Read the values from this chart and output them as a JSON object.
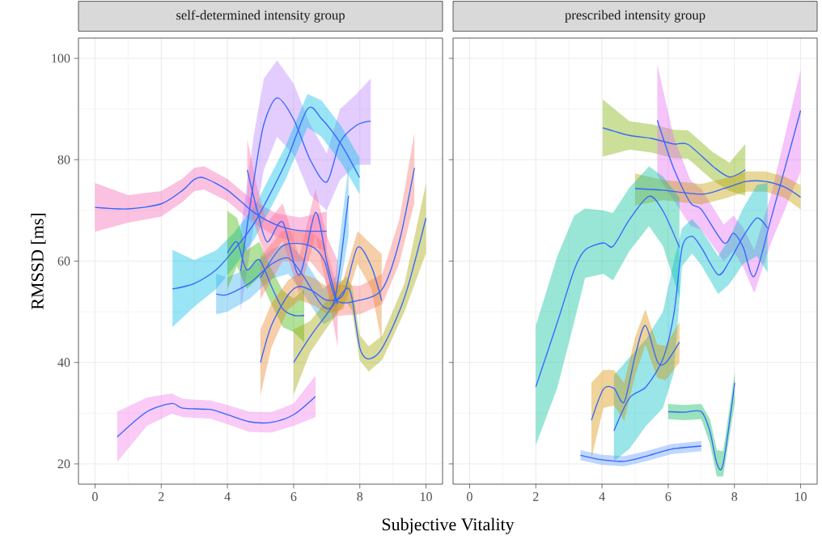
{
  "chart_data": [
    {
      "type": "line",
      "title": "self-determined intensity group",
      "xlabel": "Subjective Vitality",
      "ylabel": "RMSSD [ms]",
      "xlim": [
        -0.5,
        10.5
      ],
      "ylim": [
        16,
        104
      ],
      "xticks": [
        0,
        2,
        4,
        6,
        8,
        10
      ],
      "yticks": [
        20,
        40,
        60,
        80,
        100
      ],
      "grid": true,
      "series": [
        {
          "color": "#3366ff",
          "x": [
            0,
            1,
            2,
            2.65,
            3,
            3.3,
            4,
            4.8,
            5.5,
            6.2,
            7
          ],
          "values": [
            70.6,
            70.3,
            71.3,
            74,
            76.1,
            76.4,
            74,
            69.6,
            67.1,
            66,
            65.9
          ],
          "lower": [
            65.8,
            67.6,
            68.8,
            71.7,
            73.8,
            74.1,
            71.8,
            67.4,
            64.8,
            63.4,
            62
          ],
          "upper": [
            75.4,
            73,
            73.8,
            76.3,
            78.4,
            78.7,
            76.2,
            71.8,
            69.4,
            68.6,
            69.8
          ]
        },
        {
          "color": "#3366ff",
          "x": [
            0.67,
            1.57,
            2.32,
            2.65,
            3.5,
            4,
            4.66,
            5.33,
            6,
            6.66
          ],
          "values": [
            25.3,
            30.3,
            31.9,
            31,
            30.7,
            29.7,
            28.3,
            28.2,
            29.7,
            33.3
          ],
          "lower": [
            20.4,
            27.5,
            29.9,
            29.2,
            28.9,
            27.8,
            26.3,
            26.2,
            27.5,
            29.2
          ],
          "upper": [
            30.3,
            33.1,
            33.9,
            32.8,
            32.5,
            31.6,
            30.3,
            30.2,
            31.9,
            37.4
          ]
        },
        {
          "color": "#3366ff",
          "x": [
            4.4,
            4.8,
            5.1,
            5.5,
            6,
            6.5,
            7,
            7.4,
            7.9,
            8.33
          ],
          "values": [
            58,
            76,
            87,
            92.2,
            88,
            80,
            75.6,
            83.4,
            86.8,
            87.6
          ],
          "lower": [
            50,
            67,
            78,
            84.5,
            81,
            73,
            70,
            76,
            79,
            79
          ],
          "upper": [
            66,
            85,
            96,
            99.6,
            95,
            87,
            81.2,
            90,
            93,
            96
          ]
        },
        {
          "color": "#3366ff",
          "x": [
            2.34,
            3,
            3.66,
            4.16,
            4.83,
            5.75,
            6.42,
            6.84,
            7.43,
            7.99
          ],
          "values": [
            54.5,
            55.6,
            58.3,
            61.9,
            67.7,
            79.3,
            90,
            88.1,
            83.1,
            76.5
          ],
          "lower": [
            47,
            51,
            54.5,
            58.5,
            64.5,
            76,
            86.4,
            84.5,
            79.5,
            73.2
          ],
          "upper": [
            62.2,
            60.2,
            62.1,
            65.3,
            70.9,
            82.6,
            93,
            91.7,
            86.7,
            80.4
          ]
        },
        {
          "color": "#3366ff",
          "x": [
            3.66,
            4,
            4.66,
            5.33,
            5.84,
            6.3,
            6.9,
            7.26,
            7.66
          ],
          "values": [
            53.5,
            53.4,
            55.6,
            59.4,
            60.6,
            57,
            51,
            53,
            72.9
          ],
          "lower": [
            49.5,
            50,
            52.5,
            56.5,
            57.5,
            53.5,
            47.5,
            49,
            65
          ],
          "upper": [
            57.5,
            56.8,
            58.7,
            62.3,
            63.7,
            60.5,
            54.5,
            57,
            79
          ]
        },
        {
          "color": "#3366ff",
          "x": [
            4,
            4.29,
            4.58,
            4.96,
            5.33,
            5.67,
            6,
            6.32
          ],
          "values": [
            61.6,
            63.8,
            58.3,
            60.3,
            55,
            50.6,
            49.3,
            49.3
          ],
          "lower": [
            54.5,
            59,
            54.5,
            56.8,
            51.5,
            47,
            46,
            44
          ],
          "upper": [
            69.9,
            68.5,
            62.1,
            63.8,
            58.5,
            54.2,
            52.6,
            54.5
          ]
        },
        {
          "color": "#3366ff",
          "x": [
            4.6,
            4.9,
            5.2,
            5.67,
            6.17,
            6.66,
            7,
            7.33
          ],
          "values": [
            78,
            70,
            63.8,
            67.7,
            57.2,
            69.6,
            60,
            51.5
          ],
          "lower": [
            72,
            65.5,
            60,
            64,
            53.5,
            65,
            55,
            43
          ],
          "upper": [
            84,
            74.5,
            67.6,
            71.4,
            60.9,
            74.2,
            65,
            60
          ]
        },
        {
          "color": "#3366ff",
          "x": [
            5,
            5.67,
            6.5,
            6.93,
            7.3,
            8,
            8.68,
            9.19,
            9.65
          ],
          "values": [
            56.7,
            63,
            63,
            60,
            52.3,
            52.3,
            54.5,
            63.8,
            78.4
          ],
          "lower": [
            52.5,
            60,
            60,
            56.5,
            49.2,
            49.5,
            51.5,
            59.5,
            71.5
          ],
          "upper": [
            60.9,
            66,
            66,
            63.5,
            55.4,
            55.1,
            57.5,
            68.1,
            85.3
          ]
        },
        {
          "color": "#3366ff",
          "x": [
            5,
            5.33,
            5.84,
            6.17,
            6.6,
            7,
            7.5,
            7.93,
            8.35,
            8.66
          ],
          "values": [
            40,
            47.3,
            53.4,
            55,
            54,
            52.3,
            53.4,
            62.7,
            58.9,
            52.2
          ],
          "lower": [
            33.6,
            43,
            50.5,
            52.3,
            51.3,
            49.6,
            50.5,
            59.5,
            54.5,
            44
          ],
          "upper": [
            46.5,
            51.6,
            56.3,
            57.7,
            56.7,
            55,
            56.3,
            65.9,
            63.3,
            61.4
          ]
        },
        {
          "color": "#3366ff",
          "x": [
            6,
            6.5,
            7,
            7.58,
            7.76,
            8,
            8.27,
            8.68,
            9.35,
            10
          ],
          "values": [
            40,
            45.1,
            49.5,
            54.5,
            52.8,
            42.9,
            40.7,
            42.9,
            52.8,
            68.5
          ],
          "lower": [
            33.6,
            42,
            46.8,
            52,
            50.3,
            40.4,
            38.2,
            40.5,
            50,
            61.6
          ],
          "upper": [
            46.5,
            48.2,
            52.2,
            57,
            55.3,
            45.4,
            43.2,
            45.3,
            55.6,
            75.4
          ]
        }
      ]
    },
    {
      "type": "line",
      "title": "prescribed intensity group",
      "xlim": [
        -0.5,
        10.5
      ],
      "ylim": [
        16,
        104
      ],
      "xticks": [
        0,
        2,
        4,
        6,
        8,
        10
      ],
      "yticks": [
        20,
        40,
        60,
        80,
        100
      ],
      "grid": true,
      "tick_labels": "x",
      "series": [
        {
          "color": "#3366ff",
          "x": [
            4.02,
            4.83,
            5.5,
            6.17,
            6.6,
            7.35,
            7.85,
            8.33
          ],
          "values": [
            86.3,
            84.8,
            84.2,
            83.1,
            83,
            78.7,
            76.6,
            78
          ],
          "lower": [
            80.6,
            82,
            81.4,
            80.3,
            80.2,
            75.9,
            73.8,
            72.9
          ],
          "upper": [
            91.9,
            87.6,
            87,
            85.9,
            85.8,
            81.5,
            79.4,
            83.1
          ]
        },
        {
          "color": "#3366ff",
          "x": [
            5.67,
            6.17,
            6.67,
            7,
            7.68,
            7.97,
            8.27,
            8.6,
            9.1,
            10
          ],
          "values": [
            87.8,
            78.2,
            71.5,
            70.2,
            63.6,
            65.5,
            62.7,
            57,
            68.2,
            89.7
          ],
          "lower": [
            76.8,
            72,
            67,
            66.2,
            60,
            62,
            58.8,
            53.7,
            63.5,
            77.6
          ],
          "upper": [
            98.8,
            84.4,
            76,
            74.2,
            67.2,
            69,
            66.6,
            62.2,
            72.9,
            97.7
          ]
        },
        {
          "color": "#3366ff",
          "x": [
            5,
            5.84,
            7,
            7.68,
            8.35,
            8.94,
            9.52,
            10
          ],
          "values": [
            74.3,
            74,
            73.2,
            74.3,
            75.7,
            75.7,
            74.6,
            72.6
          ],
          "lower": [
            71,
            72,
            71.2,
            72.3,
            73.7,
            73.7,
            72.5,
            70.2
          ],
          "upper": [
            77.3,
            76,
            75.2,
            76.3,
            77.7,
            77.7,
            76.7,
            75
          ]
        },
        {
          "color": "#3366ff",
          "x": [
            2,
            2.65,
            3.16,
            3.49,
            4.04,
            4.33,
            4.83,
            5.42,
            5.84,
            6.34
          ],
          "values": [
            35.2,
            47.9,
            58.3,
            62.2,
            63.6,
            62.9,
            68.2,
            72.8,
            69.9,
            62.7
          ],
          "lower": [
            23.7,
            35,
            48,
            56.7,
            57.5,
            56.2,
            62,
            66.9,
            63,
            52.8
          ],
          "upper": [
            47.3,
            61,
            69,
            70.4,
            70,
            69.5,
            74.5,
            78.7,
            76.7,
            72.5
          ]
        },
        {
          "color": "#3366ff",
          "x": [
            4.36,
            4.83,
            5.33,
            5.84,
            6.17,
            6.42,
            6.72,
            7,
            7.51,
            7.85,
            8.27,
            8.68,
            9
          ],
          "values": [
            26.5,
            33,
            35.2,
            40.7,
            49.5,
            62.7,
            64.9,
            62.7,
            57.3,
            60,
            64.9,
            68.5,
            66.5
          ],
          "lower": [
            20.5,
            23,
            27.5,
            31,
            38,
            59,
            61.5,
            59.2,
            53.5,
            55.5,
            59.5,
            61,
            57.8
          ],
          "upper": [
            37.5,
            41,
            44.6,
            50,
            60,
            66.5,
            68.3,
            66.2,
            61,
            64.5,
            70.5,
            75,
            75.4
          ]
        },
        {
          "color": "#3366ff",
          "x": [
            3.68,
            4.04,
            4.36,
            4.67,
            5,
            5.31,
            5.67,
            5.92,
            6.34
          ],
          "values": [
            28.6,
            34.7,
            34.9,
            32.2,
            41.3,
            47.3,
            40.2,
            39.9,
            44
          ],
          "lower": [
            21,
            31,
            31.5,
            28.5,
            37.5,
            43.5,
            37,
            36.5,
            40
          ],
          "upper": [
            36,
            38.5,
            38.5,
            36,
            45,
            50.5,
            43.5,
            43.3,
            48
          ]
        },
        {
          "color": "#3366ff",
          "x": [
            6,
            6.5,
            7,
            7.26,
            7.47,
            7.66,
            8.01
          ],
          "values": [
            30.3,
            30.2,
            30.3,
            26.4,
            20.1,
            20,
            36
          ],
          "lower": [
            28.8,
            28.6,
            28.8,
            24,
            17.5,
            17.5,
            32
          ],
          "upper": [
            31.8,
            31.6,
            31.8,
            28.8,
            22.7,
            22.5,
            38
          ]
        },
        {
          "color": "#3366ff",
          "x": [
            3.35,
            4,
            4.66,
            5.33,
            6.09,
            7
          ],
          "values": [
            21.7,
            20.8,
            20.5,
            21.5,
            22.9,
            23.5
          ],
          "lower": [
            20.7,
            19.8,
            19.5,
            20.5,
            21.9,
            22.5
          ],
          "upper": [
            22.7,
            21.8,
            21.5,
            22.5,
            23.9,
            24.5
          ]
        }
      ]
    }
  ]
}
